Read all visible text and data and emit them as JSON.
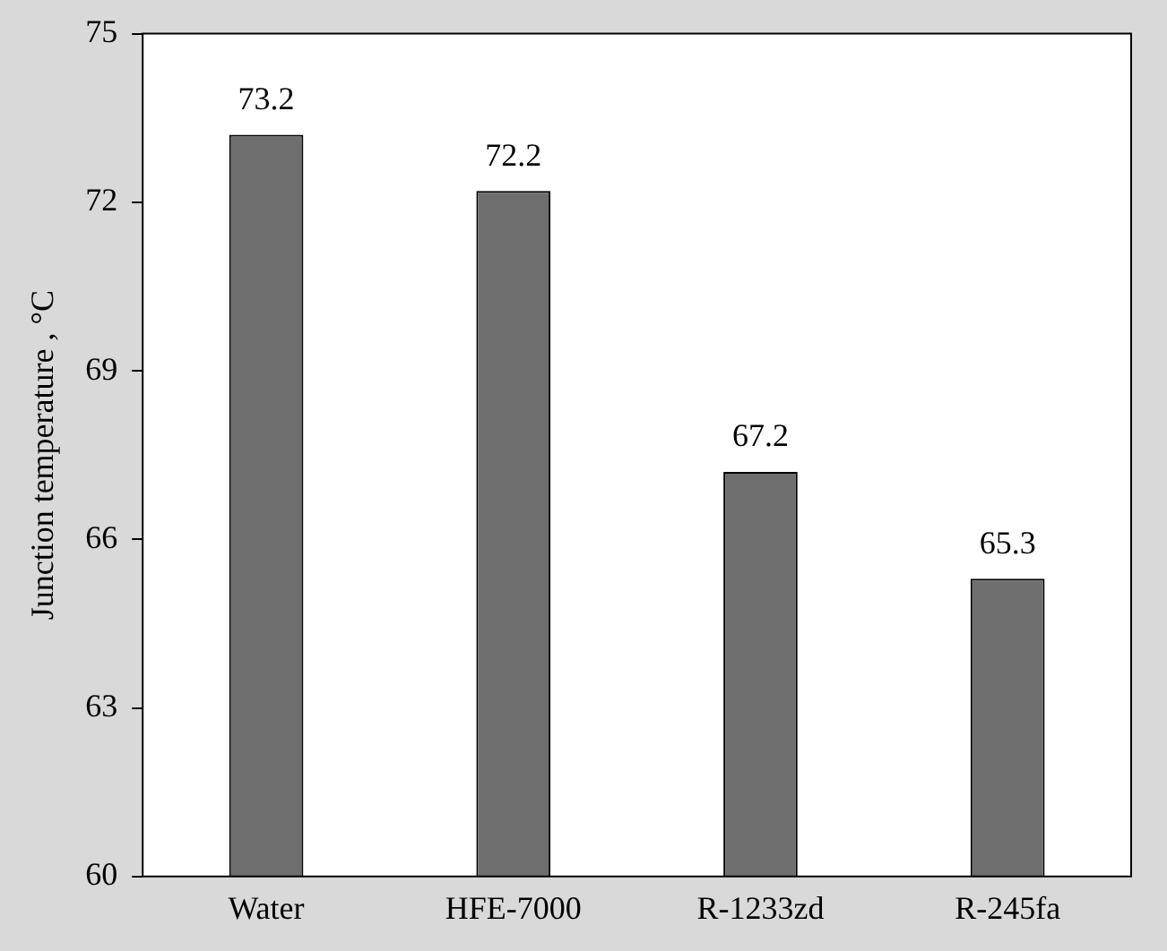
{
  "chart_data": {
    "type": "bar",
    "ylabel": "Junction temperature , °C",
    "categories": [
      "Water",
      "HFE-7000",
      "R-1233zd",
      "R-245fa"
    ],
    "values": [
      73.2,
      72.2,
      67.2,
      65.3
    ],
    "color": "#6e6e6e",
    "ylim": [
      60,
      75
    ],
    "yticks": [
      60,
      63,
      66,
      69,
      72,
      75
    ],
    "grid": false,
    "legend": false,
    "data_labels": true
  }
}
